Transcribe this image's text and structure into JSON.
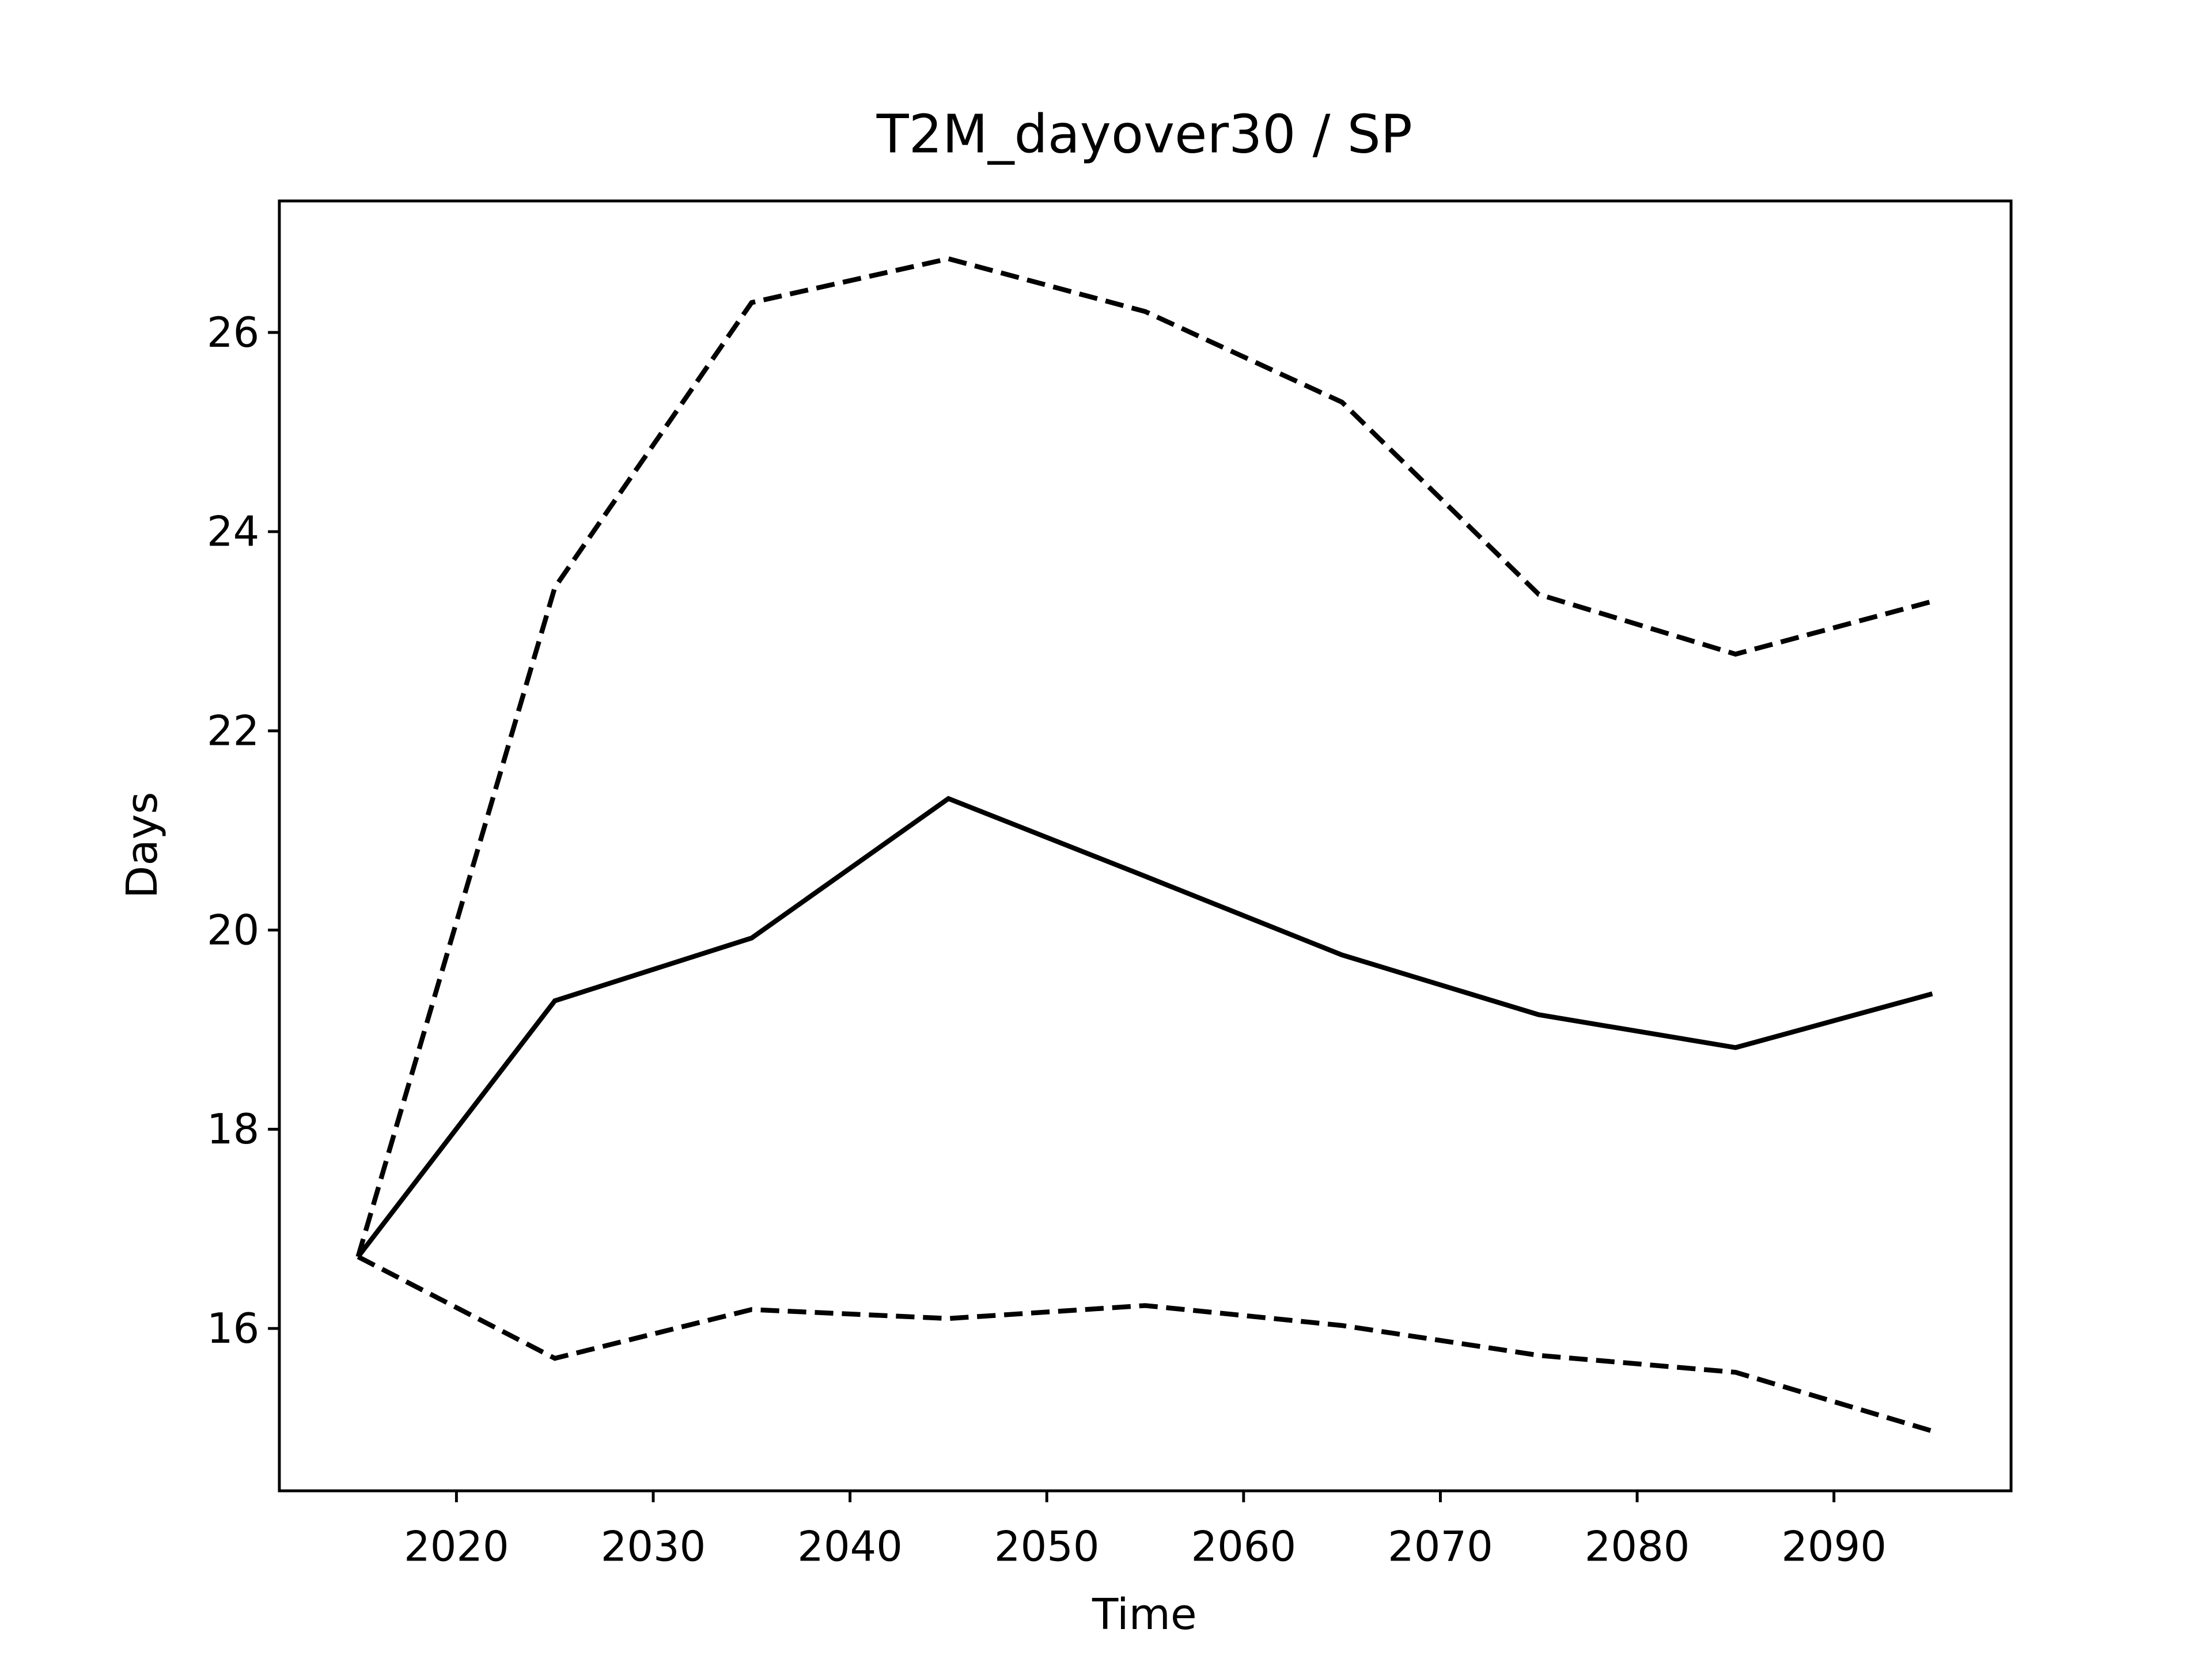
{
  "chart_data": {
    "type": "line",
    "title": "T2M_dayover30 / SP",
    "x_label": "Time",
    "y_label": "Days",
    "x": [
      2015,
      2025,
      2035,
      2045,
      2055,
      2065,
      2075,
      2085,
      2095
    ],
    "series": [
      {
        "color": "#000000",
        "style": "solid",
        "values": [
          16.72,
          19.29,
          19.92,
          21.32,
          20.54,
          19.75,
          19.15,
          18.82,
          19.36
        ]
      },
      {
        "color": "#000000",
        "style": "dashed",
        "values": [
          16.72,
          23.44,
          26.3,
          26.74,
          26.21,
          25.3,
          23.37,
          22.77,
          23.3
        ]
      },
      {
        "color": "#000000",
        "style": "dashed",
        "values": [
          16.72,
          15.7,
          16.19,
          16.1,
          16.23,
          16.03,
          15.73,
          15.56,
          14.97
        ]
      }
    ],
    "xlim": [
      2011,
      2099
    ],
    "ylim": [
      14.37,
      27.32
    ],
    "xticks": [
      2020,
      2030,
      2040,
      2050,
      2060,
      2070,
      2080,
      2090
    ],
    "yticks": [
      16,
      18,
      20,
      22,
      24,
      26
    ],
    "grid": false
  }
}
